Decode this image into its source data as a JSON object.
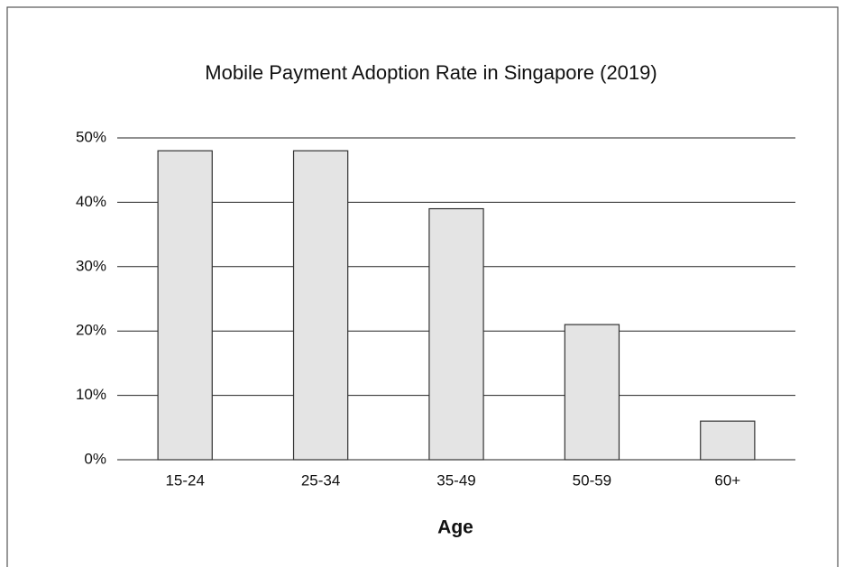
{
  "chart_data": {
    "type": "bar",
    "title": "Mobile Payment Adoption Rate in Singapore (2019)",
    "x_label": "Age",
    "categories": [
      "15-24",
      "25-34",
      "35-49",
      "50-59",
      "60+"
    ],
    "values": [
      48,
      48,
      39,
      21,
      6
    ],
    "color": "#e4e4e4",
    "ylim": [
      0,
      50
    ],
    "yticks": [
      {
        "value": 0,
        "label": "0%"
      },
      {
        "value": 10,
        "label": "10%"
      },
      {
        "value": 20,
        "label": "20%"
      },
      {
        "value": 30,
        "label": "30%"
      },
      {
        "value": 40,
        "label": "40%"
      },
      {
        "value": 50,
        "label": "50%"
      }
    ],
    "grid": true
  }
}
